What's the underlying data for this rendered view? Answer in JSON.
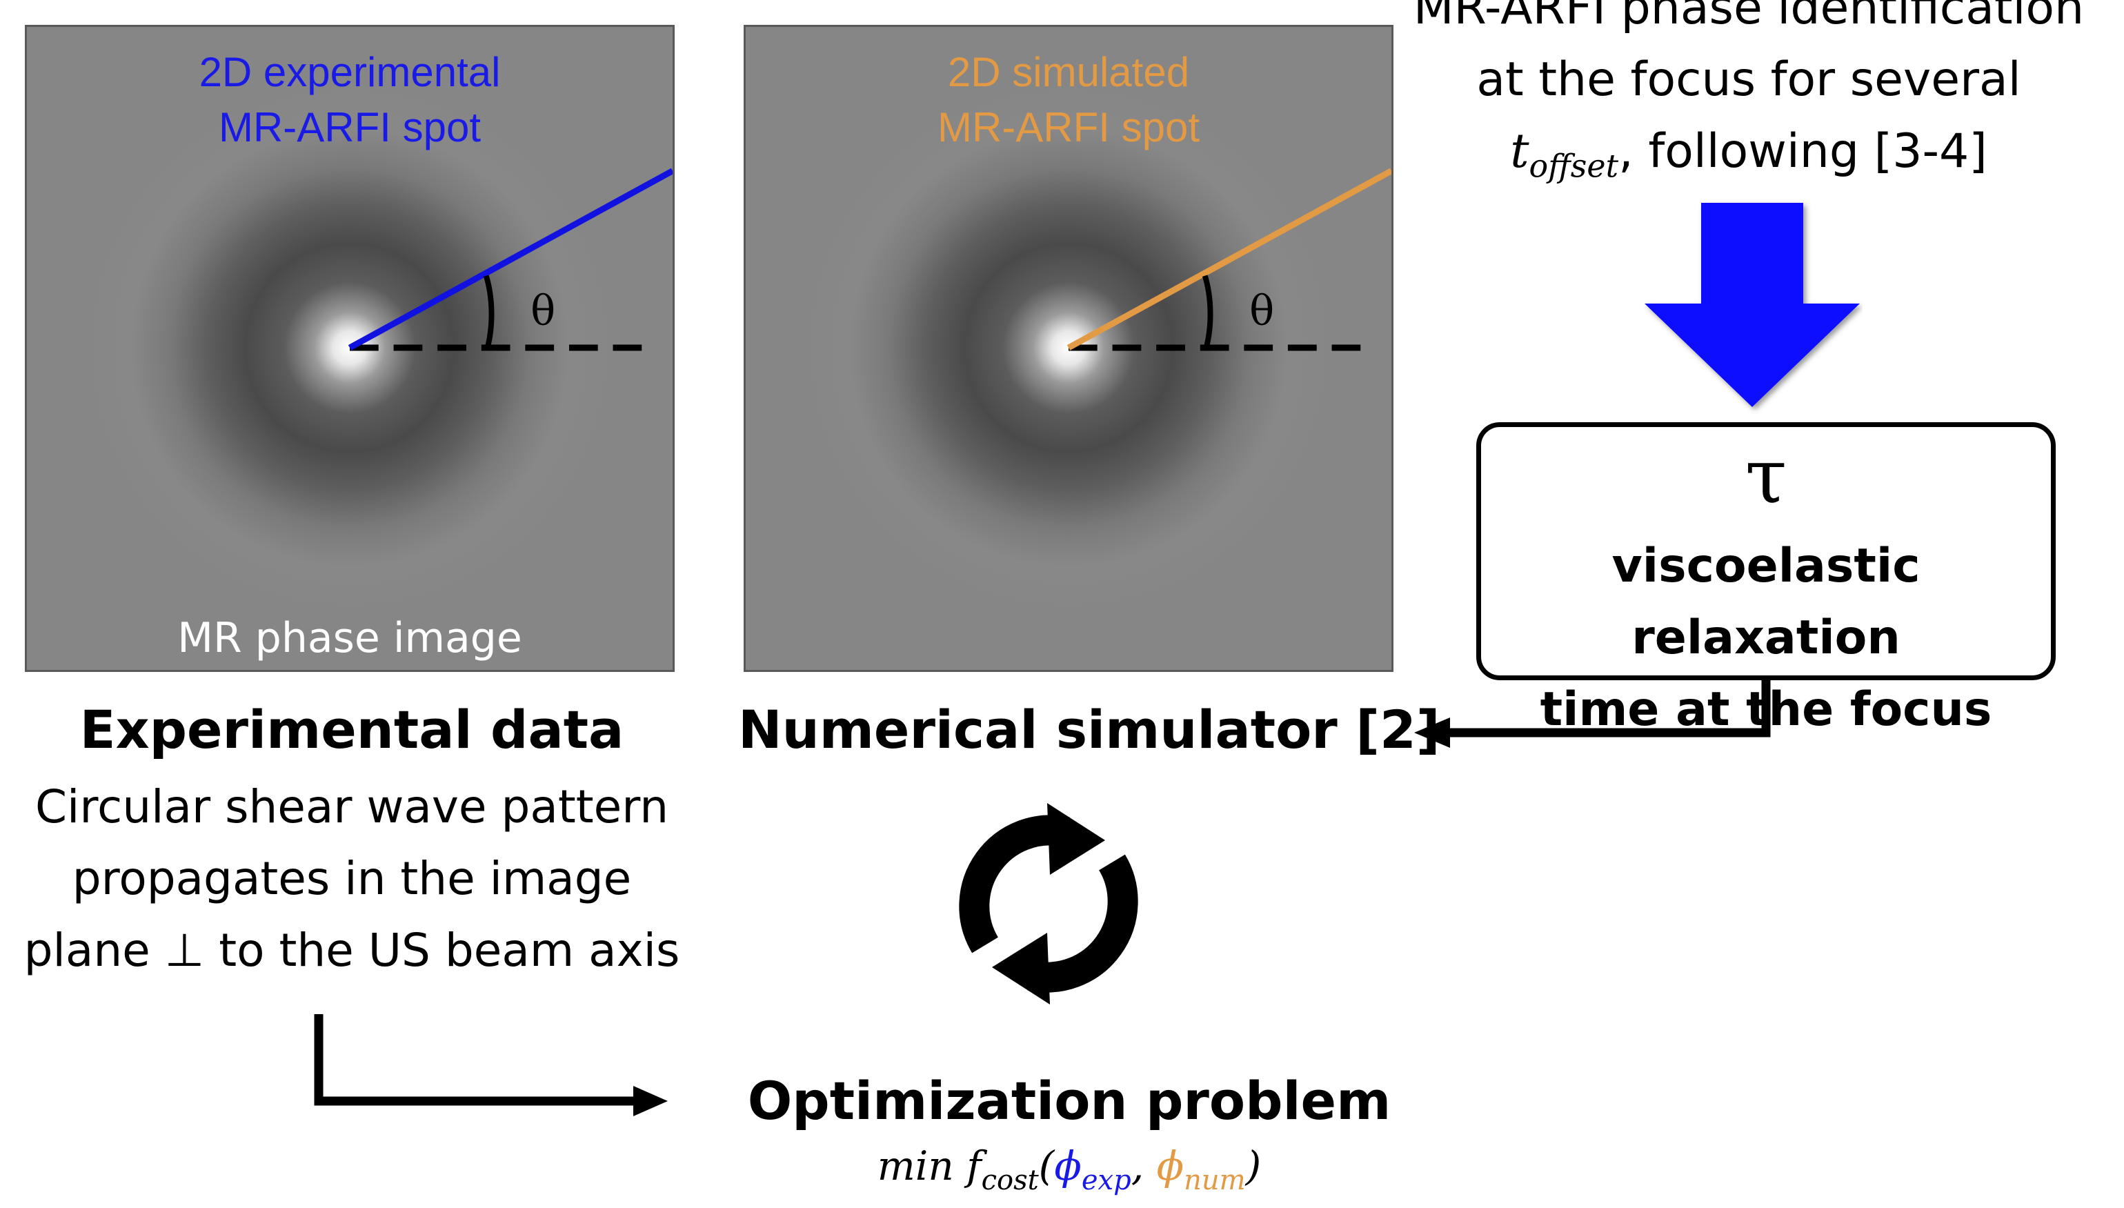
{
  "left_panel": {
    "title_line1": "2D experimental",
    "title_line2": "MR-ARFI spot",
    "bottom_label": "MR phase image",
    "angle_symbol": "θ",
    "line_color": "#1212e0"
  },
  "right_panel": {
    "title_line1": "2D simulated",
    "title_line2": "MR-ARFI spot",
    "angle_symbol": "θ",
    "line_color": "#e39a45"
  },
  "experimental": {
    "heading": "Experimental data",
    "lines": [
      "Circular shear wave pattern",
      "propagates in the image",
      "plane ⊥ to the US beam axis"
    ]
  },
  "simulator": {
    "heading": "Numerical simulator [2]"
  },
  "top_right": {
    "line1": "MR-ARFI phase identification",
    "line2": "at the focus for several",
    "t_symbol": "t",
    "t_subscript": "offset",
    "line3_rest": ", following [3-4]",
    "arrow_color": "#0a0aff"
  },
  "tau_box": {
    "symbol": "τ",
    "line1": "viscoelastic relaxation",
    "line2": "time at the focus"
  },
  "cycle_icon": "refresh-cycle-icon",
  "optimization": {
    "heading": "Optimization problem",
    "min": "min",
    "f": "f",
    "f_sub": "cost",
    "open": "(",
    "phi_exp": "ϕ",
    "phi_exp_sub": "exp",
    "comma": ", ",
    "phi_num": "ϕ",
    "phi_num_sub": "num",
    "close": ")",
    "exp_color": "#1a1ae6",
    "num_color": "#e39a45"
  }
}
